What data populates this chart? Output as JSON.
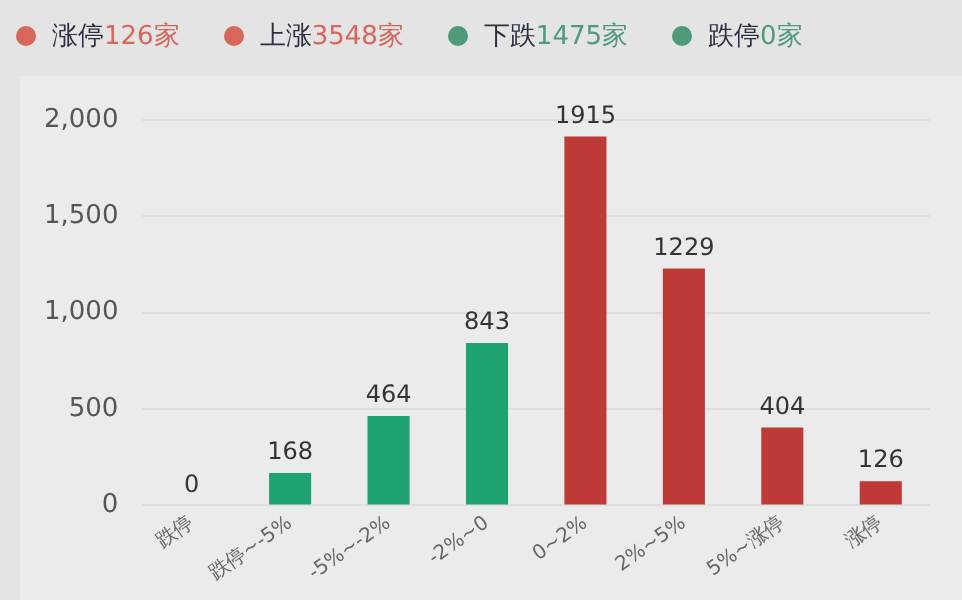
{
  "chart_data": {
    "type": "bar",
    "annotations": [
      "涨停126家",
      "上涨3548家",
      "下跌1475家",
      "跌停0家"
    ],
    "categories": [
      "跌停",
      "跌停~-5%",
      "-5%~-2%",
      "-2%~0",
      "0~2%",
      "2%~5%",
      "5%~涨停",
      "涨停"
    ],
    "values": [
      0,
      168,
      464,
      843,
      1915,
      1229,
      404,
      126
    ],
    "colors": [
      "#1fa371",
      "#1fa371",
      "#1fa371",
      "#1fa371",
      "#bd3a37",
      "#bd3a37",
      "#bd3a37",
      "#bd3a37"
    ],
    "ylim": [
      0,
      2000
    ],
    "yticks": [
      {
        "value": 0,
        "label": "0"
      },
      {
        "value": 500,
        "label": "500"
      },
      {
        "value": 1000,
        "label": "1,000"
      },
      {
        "value": 1500,
        "label": "1,500"
      },
      {
        "value": 2000,
        "label": "2,000"
      }
    ],
    "grid": "y",
    "data_labels": true,
    "legend": false
  }
}
